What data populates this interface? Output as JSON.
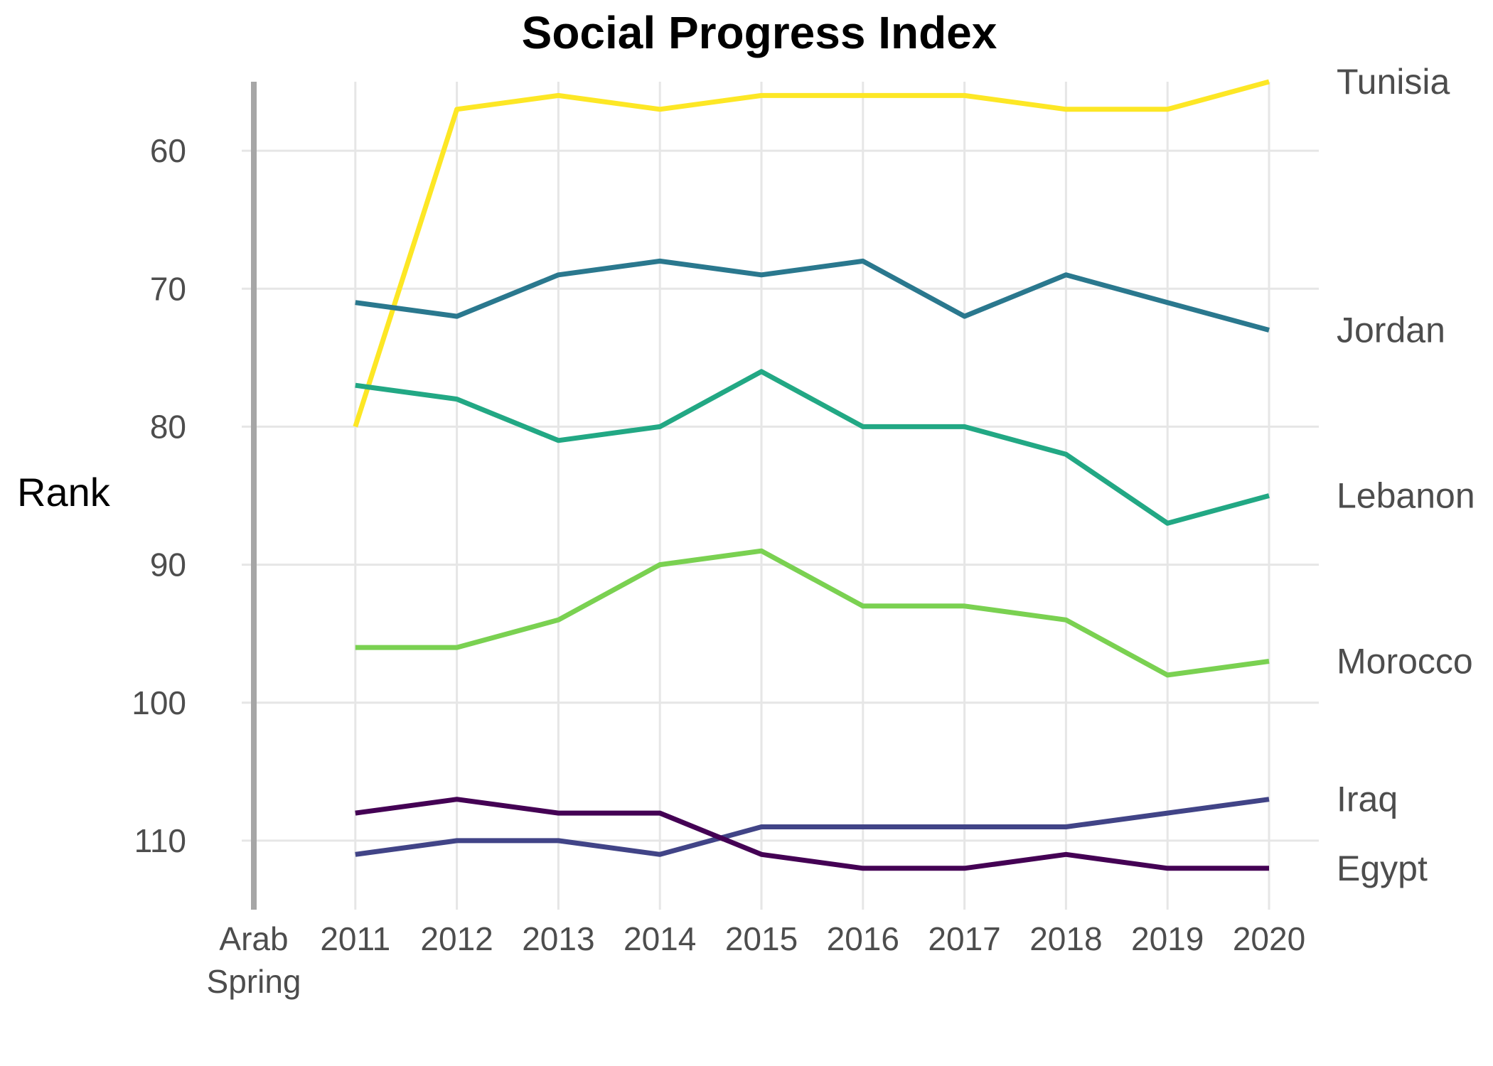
{
  "chart_data": {
    "type": "line",
    "title": "Social Progress Index",
    "ylabel": "Rank",
    "xlabel": "",
    "x_categories": [
      "Arab Spring",
      "2011",
      "2012",
      "2013",
      "2014",
      "2015",
      "2016",
      "2017",
      "2018",
      "2019",
      "2020"
    ],
    "x_category_lines": [
      [
        "Arab",
        "Spring"
      ],
      [
        "2011"
      ],
      [
        "2012"
      ],
      [
        "2013"
      ],
      [
        "2014"
      ],
      [
        "2015"
      ],
      [
        "2016"
      ],
      [
        "2017"
      ],
      [
        "2018"
      ],
      [
        "2019"
      ],
      [
        "2020"
      ]
    ],
    "x": [
      2011,
      2012,
      2013,
      2014,
      2015,
      2016,
      2017,
      2018,
      2019,
      2020
    ],
    "y_ticks": [
      60,
      70,
      80,
      90,
      100,
      110
    ],
    "ylim": [
      115,
      55
    ],
    "y_reversed": true,
    "grid": true,
    "reference_line": {
      "category": "Arab Spring",
      "color": "#a6a6a6"
    },
    "legend": "direct labels at right end of lines",
    "series": [
      {
        "name": "Tunisia",
        "color": "#fde725",
        "values": [
          80,
          57,
          56,
          57,
          56,
          56,
          56,
          57,
          57,
          55
        ]
      },
      {
        "name": "Jordan",
        "color": "#2a788e",
        "values": [
          71,
          72,
          69,
          68,
          69,
          68,
          72,
          69,
          71,
          73
        ]
      },
      {
        "name": "Lebanon",
        "color": "#22a884",
        "values": [
          77,
          78,
          81,
          80,
          76,
          80,
          80,
          82,
          87,
          85
        ]
      },
      {
        "name": "Morocco",
        "color": "#7ad151",
        "values": [
          96,
          96,
          94,
          90,
          89,
          93,
          93,
          94,
          98,
          97
        ]
      },
      {
        "name": "Iraq",
        "color": "#414487",
        "values": [
          111,
          110,
          110,
          111,
          109,
          109,
          109,
          109,
          108,
          107
        ]
      },
      {
        "name": "Egypt",
        "color": "#440154",
        "values": [
          108,
          107,
          108,
          108,
          111,
          112,
          112,
          111,
          112,
          112
        ]
      }
    ]
  }
}
